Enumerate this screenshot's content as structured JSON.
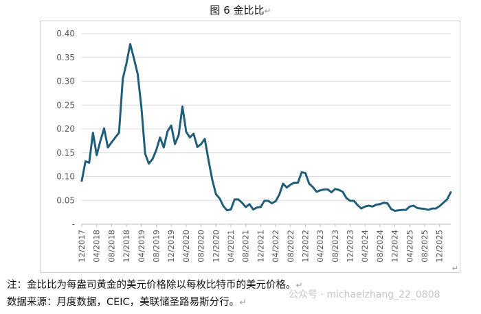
{
  "figure": {
    "title": "图 6  金比比",
    "return_mark": "↵"
  },
  "notes": {
    "line1": "注：金比比为每盎司黄金的美元价格除以每枚比特币的美元价格。",
    "line2": "数据来源：月度数据，CEIC，美联储圣路易斯分行。"
  },
  "watermark": "公众号 · michaelzhang_22_0808",
  "chart_data": {
    "type": "line",
    "title": "",
    "xlabel": "",
    "ylabel": "",
    "ylim": [
      0,
      0.4
    ],
    "yticks": [
      0,
      0.05,
      0.1,
      0.15,
      0.2,
      0.25,
      0.3,
      0.35,
      0.4
    ],
    "ytick_labels": [
      "-",
      "0.05",
      "0.10",
      "0.15",
      "0.20",
      "0.25",
      "0.30",
      "0.35",
      "0.40"
    ],
    "grid": true,
    "line_color": "#1f5d78",
    "xtick_labels": [
      "12/2017",
      "04/2018",
      "08/2018",
      "12/2018",
      "04/2019",
      "08/2019",
      "12/2019",
      "04/2020",
      "08/2020",
      "12/2020",
      "04/2021",
      "08/2021",
      "12/2021",
      "04/2022",
      "08/2022",
      "12/2022",
      "04/2023",
      "08/2023",
      "12/2023",
      "04/2024",
      "08/2024",
      "12/2024",
      "04/2025",
      "08/2025",
      "12/2025"
    ],
    "series": [
      {
        "values": [
          0.091,
          0.132,
          0.129,
          0.192,
          0.145,
          0.175,
          0.201,
          0.161,
          0.172,
          0.182,
          0.192,
          0.305,
          0.338,
          0.378,
          0.348,
          0.315,
          0.245,
          0.148,
          0.127,
          0.137,
          0.156,
          0.182,
          0.161,
          0.195,
          0.207,
          0.168,
          0.187,
          0.247,
          0.194,
          0.182,
          0.19,
          0.162,
          0.168,
          0.179,
          0.135,
          0.094,
          0.063,
          0.054,
          0.038,
          0.029,
          0.031,
          0.052,
          0.052,
          0.045,
          0.036,
          0.042,
          0.031,
          0.035,
          0.036,
          0.049,
          0.049,
          0.044,
          0.048,
          0.062,
          0.085,
          0.077,
          0.083,
          0.087,
          0.087,
          0.109,
          0.107,
          0.085,
          0.078,
          0.068,
          0.071,
          0.073,
          0.073,
          0.067,
          0.074,
          0.072,
          0.068,
          0.055,
          0.049,
          0.049,
          0.04,
          0.033,
          0.037,
          0.039,
          0.037,
          0.041,
          0.042,
          0.045,
          0.044,
          0.032,
          0.028,
          0.029,
          0.03,
          0.03,
          0.037,
          0.039,
          0.034,
          0.033,
          0.032,
          0.03,
          0.033,
          0.033,
          0.038,
          0.045,
          0.052,
          0.067
        ]
      }
    ]
  }
}
